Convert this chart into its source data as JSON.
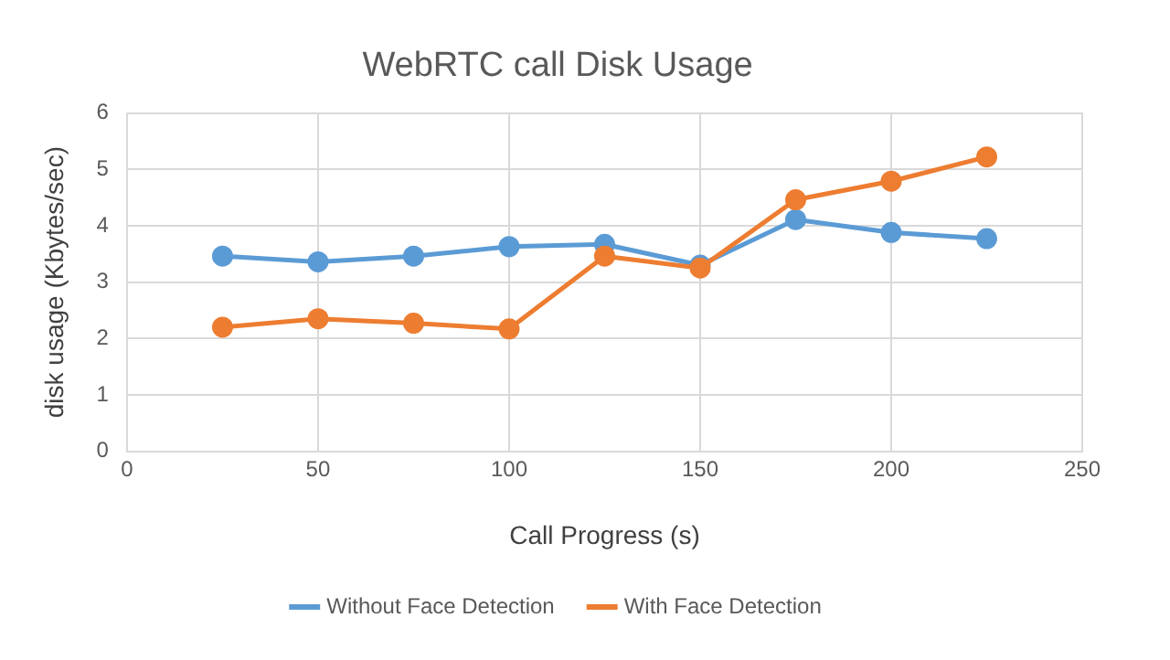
{
  "chart_data": {
    "type": "line",
    "title": "WebRTC call Disk Usage",
    "xlabel": "Call Progress (s)",
    "ylabel": "disk usage (Kbytes/sec)",
    "x": [
      25,
      50,
      75,
      100,
      125,
      150,
      175,
      200,
      225
    ],
    "series": [
      {
        "name": "Without Face Detection",
        "color": "#5b9bd5",
        "values": [
          3.46,
          3.36,
          3.46,
          3.63,
          3.67,
          3.3,
          4.11,
          3.88,
          3.77
        ]
      },
      {
        "name": "With Face Detection",
        "color": "#ed7d31",
        "values": [
          2.2,
          2.35,
          2.27,
          2.17,
          3.46,
          3.25,
          4.46,
          4.79,
          5.22
        ]
      }
    ],
    "xlim": [
      0,
      250
    ],
    "xticks": [
      0,
      50,
      100,
      150,
      200,
      250
    ],
    "ylim": [
      0,
      6
    ],
    "yticks": [
      0,
      1,
      2,
      3,
      4,
      5,
      6
    ],
    "grid": true,
    "legend": "bottom",
    "marker": "circle",
    "line_style": "solid"
  }
}
